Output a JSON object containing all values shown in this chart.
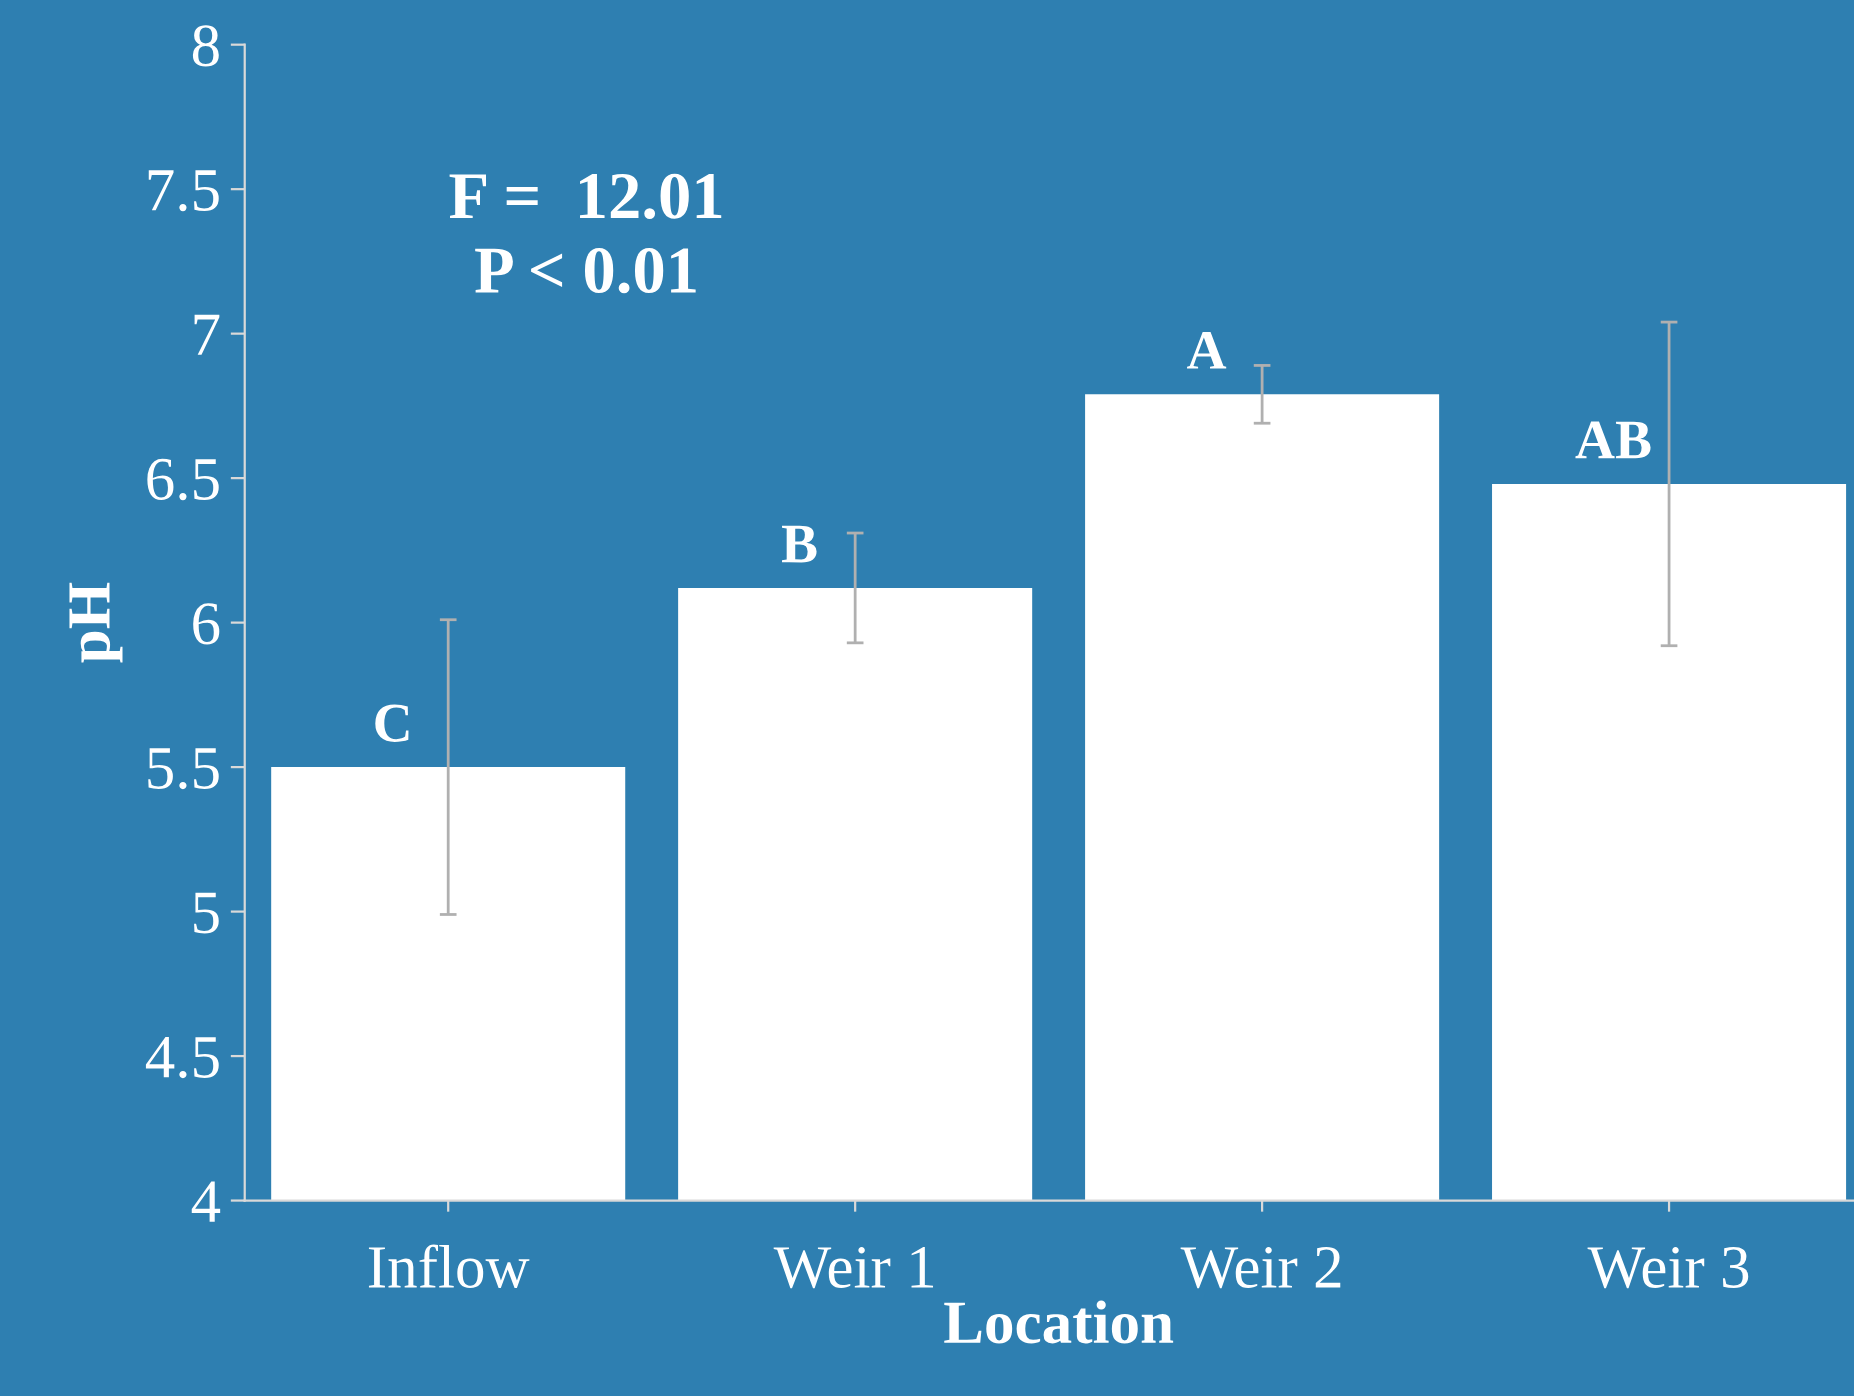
{
  "chart_data": {
    "type": "bar",
    "xlabel": "Location",
    "ylabel": "pH",
    "categories": [
      "Inflow",
      "Weir 1",
      "Weir 2",
      "Weir 3"
    ],
    "values": [
      5.5,
      6.12,
      6.79,
      6.48
    ],
    "errors": [
      0.51,
      0.19,
      0.1,
      0.56
    ],
    "color": "#ffffff",
    "ylim": [
      4,
      8
    ],
    "yticks": [
      4,
      4.5,
      5,
      5.5,
      6,
      6.5,
      7,
      7.5,
      8
    ],
    "grid": false,
    "annotations": [
      {
        "text": "C",
        "x": "Inflow",
        "y": 5.5
      },
      {
        "text": "B",
        "x": "Weir 1",
        "y": 6.12
      },
      {
        "text": "A",
        "x": "Weir 2",
        "y": 6.79
      },
      {
        "text": "AB",
        "x": "Weir 3",
        "y": 6.48
      },
      "F =  12.01\nP < 0.01"
    ]
  }
}
